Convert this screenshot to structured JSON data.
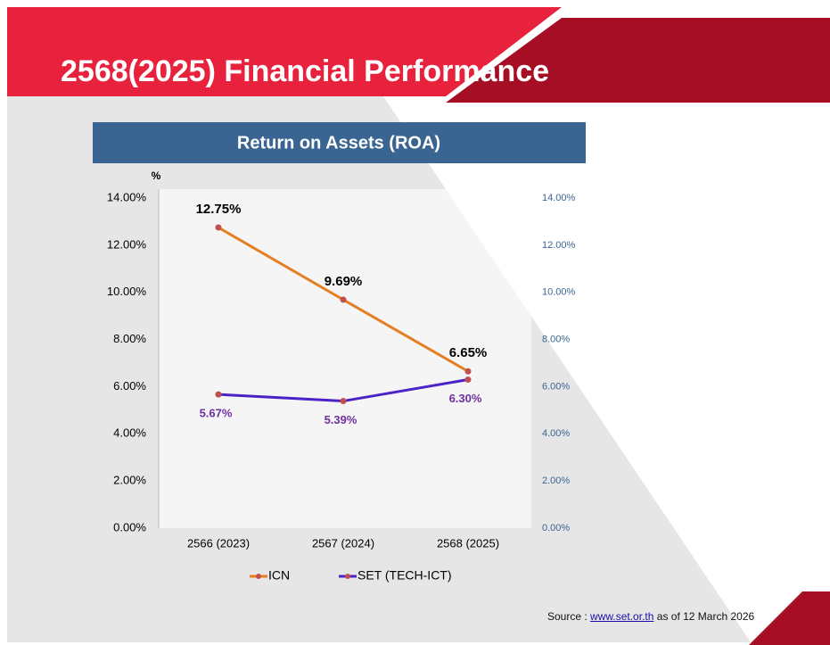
{
  "header": {
    "title": "2568(2025) Financial Performance"
  },
  "chart_data": {
    "type": "line",
    "title": "Return on Assets (ROA)",
    "y_unit": "%",
    "categories": [
      "2566 (2023)",
      "2567 (2024)",
      "2568 (2025)"
    ],
    "series": [
      {
        "name": "ICN",
        "color": "#e57e22",
        "marker_color": "#c0504d",
        "label_color": "#000000",
        "label_position": "above",
        "values": [
          12.75,
          9.69,
          6.65
        ],
        "value_labels": [
          "12.75%",
          "9.69%",
          "6.65%"
        ]
      },
      {
        "name": "SET (TECH-ICT)",
        "color": "#4b22c8",
        "marker_color": "#c0504d",
        "label_color": "#7030a0",
        "label_position": "below",
        "values": [
          5.67,
          5.39,
          6.3
        ],
        "value_labels": [
          "5.67%",
          "5.39%",
          "6.30%"
        ]
      }
    ],
    "ylim": [
      0,
      14
    ],
    "yticks": [
      {
        "value": 0,
        "label": "0.00%"
      },
      {
        "value": 2,
        "label": "2.00%"
      },
      {
        "value": 4,
        "label": "4.00%"
      },
      {
        "value": 6,
        "label": "6.00%"
      },
      {
        "value": 8,
        "label": "8.00%"
      },
      {
        "value": 10,
        "label": "10.00%"
      },
      {
        "value": 12,
        "label": "12.00%"
      },
      {
        "value": 14,
        "label": "14.00%"
      }
    ],
    "y2lim": [
      0,
      14
    ],
    "y2ticks": [
      {
        "value": 0,
        "label": "0.00%"
      },
      {
        "value": 2,
        "label": "2.00%"
      },
      {
        "value": 4,
        "label": "4.00%"
      },
      {
        "value": 6,
        "label": "6.00%"
      },
      {
        "value": 8,
        "label": "8.00%"
      },
      {
        "value": 10,
        "label": "10.00%"
      },
      {
        "value": 12,
        "label": "12.00%"
      },
      {
        "value": 14,
        "label": "14.00%"
      }
    ],
    "legend": "bottom",
    "grid": false
  },
  "source": {
    "prefix": "Source :",
    "link": "www.set.or.th",
    "suffix": "as of 12 March 2026"
  }
}
